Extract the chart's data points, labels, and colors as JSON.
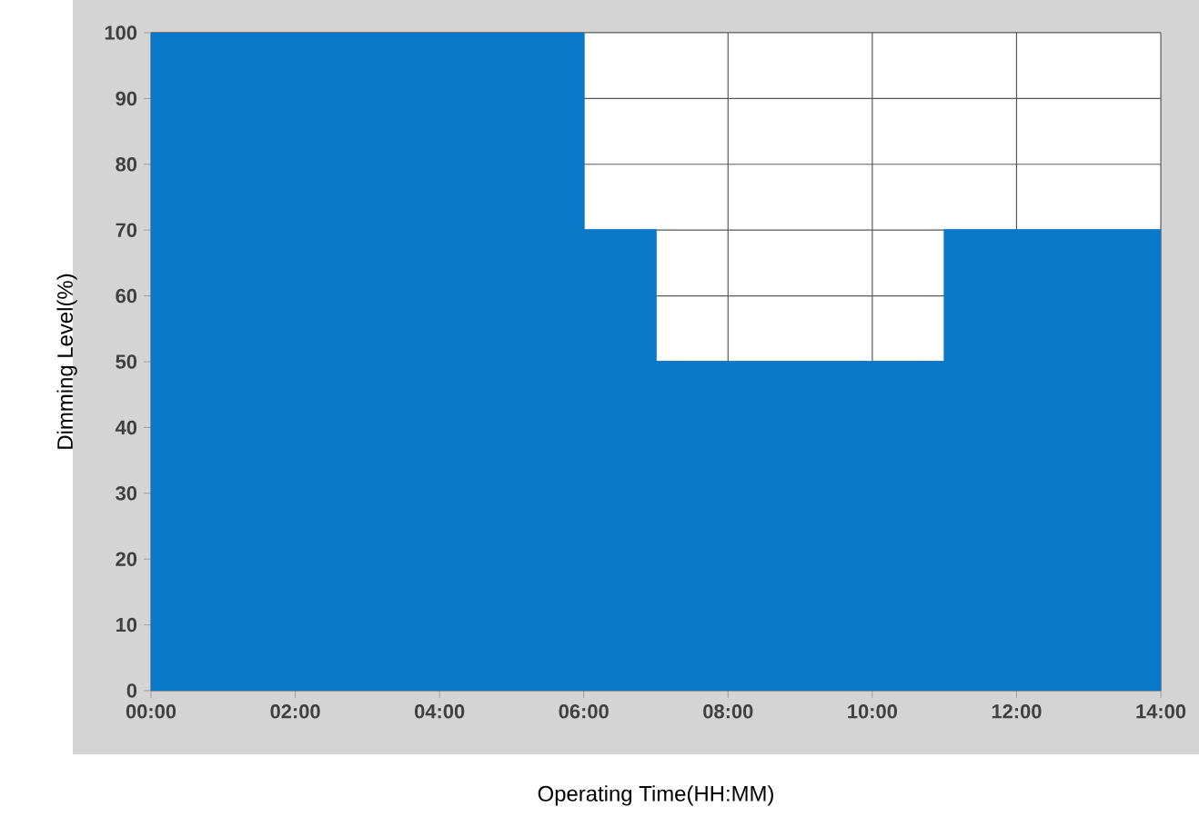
{
  "chart_data": {
    "type": "area",
    "xlabel": "Operating Time(HH:MM)",
    "ylabel": "Dimming Level(%)",
    "x": [
      0,
      6,
      6,
      7,
      7,
      11,
      11,
      14
    ],
    "series": [
      {
        "color": "#0a78c8",
        "values": [
          100,
          100,
          70,
          70,
          50,
          50,
          70,
          70
        ]
      }
    ],
    "xlim": [
      0,
      14
    ],
    "xticks": [
      {
        "value": 0,
        "label": "00:00"
      },
      {
        "value": 2,
        "label": "02:00"
      },
      {
        "value": 4,
        "label": "04:00"
      },
      {
        "value": 6,
        "label": "06:00"
      },
      {
        "value": 8,
        "label": "08:00"
      },
      {
        "value": 10,
        "label": "10:00"
      },
      {
        "value": 12,
        "label": "12:00"
      },
      {
        "value": 14,
        "label": "14:00"
      }
    ],
    "ylim": [
      0,
      100
    ],
    "yticks": [
      0,
      10,
      20,
      30,
      40,
      50,
      60,
      70,
      80,
      90,
      100
    ],
    "grid": true
  }
}
